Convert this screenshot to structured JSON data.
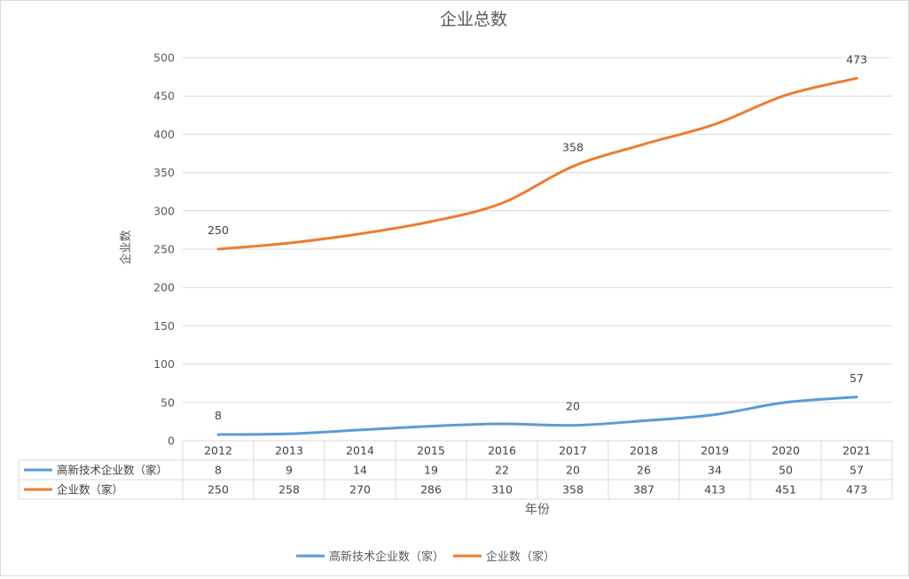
{
  "chart_data": {
    "type": "line",
    "title": "企业总数",
    "xlabel": "年份",
    "ylabel": "企业数",
    "ylim": [
      0,
      500
    ],
    "yticks": [
      0,
      50,
      100,
      150,
      200,
      250,
      300,
      350,
      400,
      450,
      500
    ],
    "categories": [
      "2012",
      "2013",
      "2014",
      "2015",
      "2016",
      "2017",
      "2018",
      "2019",
      "2020",
      "2021"
    ],
    "series": [
      {
        "name": "高新技术企业数（家）",
        "color": "#5b9bd5",
        "values": [
          8,
          9,
          14,
          19,
          22,
          20,
          26,
          34,
          50,
          57
        ],
        "labeled_indices": [
          0,
          5,
          9
        ]
      },
      {
        "name": "企业数（家）",
        "color": "#ed7d31",
        "values": [
          250,
          258,
          270,
          286,
          310,
          358,
          387,
          413,
          451,
          473
        ],
        "labeled_indices": [
          0,
          5,
          9
        ]
      }
    ],
    "grid": true,
    "legend_position": "bottom",
    "data_table": true
  }
}
